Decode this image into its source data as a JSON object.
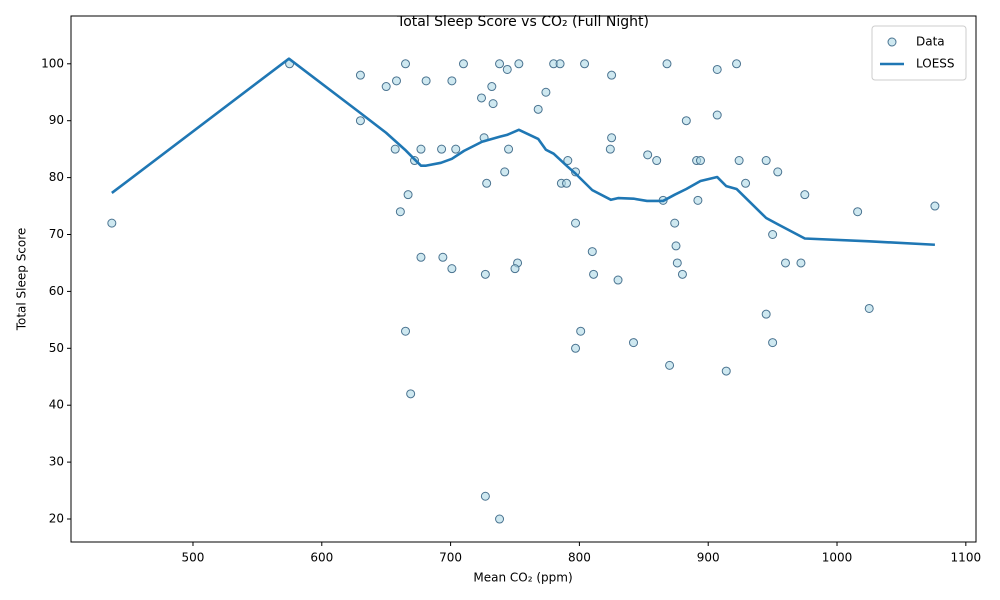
{
  "chart_data": {
    "type": "scatter",
    "title": "Total Sleep Score vs CO₂ (Full Night)",
    "x_label": "Mean CO₂ (ppm)",
    "y_label": "Total Sleep Score",
    "xlim": [
      405.3,
      1107.9
    ],
    "ylim": [
      15.96,
      108.4
    ],
    "xticks": [
      500,
      600,
      700,
      800,
      900,
      1000,
      1100
    ],
    "yticks": [
      20,
      30,
      40,
      50,
      60,
      70,
      80,
      90,
      100
    ],
    "legend": "upper right",
    "grid": false,
    "series": [
      {
        "name": "Data",
        "type": "scatter",
        "color": "#add8e6",
        "edge_color": "#4a7390",
        "x": [
          437,
          575,
          630,
          630,
          650,
          658,
          657,
          665,
          681,
          672,
          667,
          661,
          677,
          665,
          669,
          677,
          693,
          701,
          704,
          694,
          701,
          710,
          724,
          732,
          733,
          726,
          728,
          727,
          727,
          738,
          744,
          753,
          745,
          742,
          752,
          750,
          738,
          768,
          774,
          780,
          785,
          804,
          791,
          797,
          786,
          790,
          797,
          810,
          811,
          830,
          801,
          797,
          825,
          825,
          824,
          853,
          860,
          865,
          842,
          868,
          874,
          875,
          876,
          880,
          870,
          883,
          891,
          894,
          892,
          907,
          907,
          914,
          922,
          924,
          929,
          945,
          954,
          950,
          960,
          972,
          945,
          950,
          975,
          1016,
          1025,
          1076
        ],
        "values": [
          72,
          100,
          98,
          90,
          96,
          97,
          85,
          100,
          97,
          83,
          77,
          74,
          66,
          53,
          42,
          85,
          85,
          97,
          85,
          66,
          64,
          100,
          94,
          96,
          93,
          87,
          79,
          63,
          24,
          100,
          99,
          100,
          85,
          81,
          65,
          64,
          20,
          92,
          95,
          100,
          100,
          100,
          83,
          81,
          79,
          79,
          72,
          67,
          63,
          62,
          53,
          50,
          98,
          87,
          85,
          84,
          83,
          76,
          51,
          100,
          72,
          68,
          65,
          63,
          47,
          90,
          83,
          83,
          76,
          99,
          91,
          46,
          100,
          83,
          79,
          83,
          81,
          70,
          65,
          65,
          56,
          51,
          77,
          74,
          57,
          75
        ]
      },
      {
        "name": "LOESS",
        "type": "line",
        "color": "#1f77b4",
        "x": [
          437,
          574.5,
          629.7,
          649.8,
          664.6,
          671.6,
          677,
          681,
          692.5,
          701,
          710.4,
          724.4,
          738.4,
          743.8,
          753,
          768,
          774,
          780,
          791,
          797,
          810,
          824.5,
          830,
          842,
          852.5,
          865,
          874,
          883,
          894,
          907,
          914,
          922,
          945,
          954,
          975,
          1025,
          1076
        ],
        "values": [
          77.3,
          100.9,
          91.4,
          87.9,
          84.9,
          83.3,
          82.1,
          82.1,
          82.6,
          83.3,
          84.7,
          86.3,
          87.2,
          87.5,
          88.4,
          86.8,
          84.9,
          84.2,
          81.9,
          80.7,
          77.8,
          76.1,
          76.4,
          76.3,
          75.9,
          75.9,
          77,
          78,
          79.4,
          80.1,
          78.5,
          78,
          72.9,
          71.8,
          69.3,
          68.8,
          68.2
        ]
      }
    ]
  }
}
